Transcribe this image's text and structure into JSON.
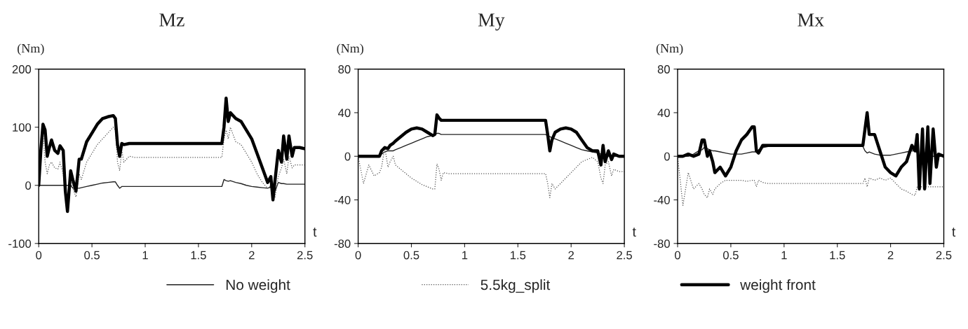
{
  "chart_data": [
    {
      "type": "line",
      "title": "Mz",
      "xlabel": "t",
      "ylabel": "(Nm)",
      "xlim": [
        0,
        2.5
      ],
      "xticks": [
        0,
        0.5,
        1,
        1.5,
        2,
        2.5
      ],
      "ylim": [
        -100,
        200
      ],
      "yticks": [
        -100,
        0,
        100,
        200
      ],
      "grid": false,
      "legend": false,
      "x": [
        0,
        0.02,
        0.04,
        0.06,
        0.08,
        0.1,
        0.12,
        0.15,
        0.18,
        0.2,
        0.23,
        0.25,
        0.27,
        0.3,
        0.32,
        0.35,
        0.38,
        0.4,
        0.45,
        0.5,
        0.55,
        0.6,
        0.65,
        0.7,
        0.72,
        0.74,
        0.76,
        0.78,
        0.8,
        0.85,
        0.9,
        1.0,
        1.5,
        1.72,
        1.74,
        1.76,
        1.78,
        1.8,
        1.85,
        1.9,
        1.95,
        2.0,
        2.05,
        2.1,
        2.15,
        2.18,
        2.2,
        2.22,
        2.25,
        2.28,
        2.3,
        2.33,
        2.35,
        2.38,
        2.4,
        2.45,
        2.5
      ],
      "series": [
        {
          "color": "#222222",
          "line_style": "solid",
          "values": [
            0,
            0,
            0,
            0,
            0,
            0,
            0,
            0,
            0,
            0,
            0,
            0,
            0,
            0,
            -5,
            -5,
            -5,
            -4,
            -2,
            0,
            2,
            4,
            5,
            6,
            6,
            0,
            -5,
            -2,
            -2,
            -2,
            -2,
            -2,
            -2,
            -2,
            10,
            8,
            7,
            8,
            5,
            3,
            0,
            -2,
            -3,
            -4,
            -5,
            -3,
            -8,
            -10,
            5,
            3,
            3,
            2,
            2,
            2,
            2,
            2,
            2
          ]
        },
        {
          "color": "#555555",
          "line_style": "dotted",
          "values": [
            0,
            45,
            90,
            40,
            20,
            35,
            40,
            30,
            28,
            40,
            20,
            -10,
            -30,
            15,
            -5,
            -20,
            20,
            10,
            40,
            55,
            70,
            80,
            90,
            100,
            95,
            40,
            25,
            60,
            40,
            50,
            48,
            48,
            48,
            48,
            80,
            95,
            80,
            100,
            75,
            70,
            55,
            40,
            20,
            5,
            -5,
            0,
            -15,
            -20,
            15,
            30,
            45,
            20,
            50,
            30,
            35,
            35,
            35
          ]
        },
        {
          "color": "#000000",
          "line_style": "solid",
          "values": [
            0,
            60,
            105,
            95,
            50,
            65,
            78,
            60,
            55,
            68,
            60,
            -10,
            -45,
            25,
            10,
            -10,
            45,
            45,
            75,
            90,
            105,
            115,
            118,
            120,
            115,
            70,
            50,
            72,
            70,
            72,
            72,
            72,
            72,
            72,
            100,
            150,
            110,
            125,
            115,
            110,
            95,
            80,
            55,
            30,
            5,
            15,
            -25,
            10,
            60,
            40,
            85,
            45,
            85,
            50,
            65,
            65,
            63
          ]
        }
      ]
    },
    {
      "type": "line",
      "title": "My",
      "xlabel": "t",
      "ylabel": "(Nm)",
      "xlim": [
        0,
        2.5
      ],
      "xticks": [
        0,
        0.5,
        1,
        1.5,
        2,
        2.5
      ],
      "ylim": [
        -80,
        80
      ],
      "yticks": [
        -80,
        -40,
        0,
        40,
        80
      ],
      "grid": false,
      "legend": "bottom",
      "x": [
        0,
        0.05,
        0.1,
        0.15,
        0.2,
        0.22,
        0.25,
        0.28,
        0.3,
        0.33,
        0.35,
        0.4,
        0.45,
        0.5,
        0.55,
        0.6,
        0.65,
        0.7,
        0.72,
        0.74,
        0.76,
        0.78,
        0.8,
        0.85,
        0.9,
        1.0,
        1.5,
        1.76,
        1.78,
        1.8,
        1.82,
        1.85,
        1.9,
        1.95,
        2.0,
        2.05,
        2.1,
        2.15,
        2.2,
        2.25,
        2.28,
        2.3,
        2.32,
        2.35,
        2.38,
        2.4,
        2.45,
        2.5
      ],
      "series": [
        {
          "name": "No weight",
          "color": "#222222",
          "line_style": "solid",
          "values": [
            0,
            0,
            0,
            0,
            0,
            2,
            4,
            5,
            5,
            5,
            6,
            8,
            10,
            12,
            14,
            16,
            18,
            19,
            20,
            21,
            21,
            20,
            20,
            20,
            20,
            20,
            20,
            20,
            19,
            18,
            17,
            16,
            14,
            12,
            10,
            8,
            6,
            5,
            4,
            3,
            2,
            1,
            0,
            0,
            0,
            0,
            0,
            0
          ]
        },
        {
          "name": "5.5kg_split",
          "color": "#555555",
          "line_style": "dotted",
          "values": [
            0,
            -25,
            -8,
            -18,
            -15,
            -10,
            8,
            -10,
            -5,
            0,
            -8,
            -12,
            -16,
            -20,
            -23,
            -26,
            -28,
            -30,
            -30,
            -7,
            -12,
            -22,
            -15,
            -16,
            -16,
            -16,
            -16,
            -16,
            -25,
            -38,
            -25,
            -30,
            -25,
            -20,
            -15,
            -10,
            -5,
            -3,
            -1,
            -5,
            -20,
            -25,
            -8,
            -5,
            -18,
            -12,
            -14,
            -14
          ]
        },
        {
          "name": "weight front",
          "color": "#000000",
          "line_style": "solid",
          "values": [
            0,
            0,
            0,
            0,
            0,
            5,
            8,
            7,
            10,
            12,
            14,
            18,
            22,
            25,
            26,
            25,
            22,
            19,
            20,
            38,
            35,
            33,
            33,
            33,
            33,
            33,
            33,
            33,
            20,
            5,
            15,
            22,
            25,
            26,
            25,
            22,
            15,
            8,
            5,
            5,
            -8,
            10,
            -5,
            5,
            -3,
            2,
            0,
            0
          ]
        }
      ]
    },
    {
      "type": "line",
      "title": "Mx",
      "xlabel": "t",
      "ylabel": "(Nm)",
      "xlim": [
        0,
        2.5
      ],
      "xticks": [
        0,
        0.5,
        1,
        1.5,
        2,
        2.5
      ],
      "ylim": [
        -80,
        80
      ],
      "yticks": [
        -80,
        -40,
        0,
        40,
        80
      ],
      "grid": false,
      "legend": false,
      "x": [
        0,
        0.05,
        0.1,
        0.15,
        0.2,
        0.23,
        0.25,
        0.28,
        0.3,
        0.33,
        0.35,
        0.4,
        0.45,
        0.5,
        0.55,
        0.6,
        0.65,
        0.7,
        0.72,
        0.74,
        0.76,
        0.8,
        0.85,
        0.9,
        1.0,
        1.5,
        1.74,
        1.76,
        1.78,
        1.8,
        1.85,
        1.9,
        1.95,
        2.0,
        2.05,
        2.1,
        2.15,
        2.2,
        2.23,
        2.25,
        2.27,
        2.3,
        2.32,
        2.35,
        2.37,
        2.4,
        2.43,
        2.45,
        2.5
      ],
      "series": [
        {
          "color": "#222222",
          "line_style": "solid",
          "values": [
            0,
            0,
            0,
            2,
            5,
            6,
            8,
            7,
            6,
            5,
            5,
            4,
            3,
            2,
            2,
            2,
            3,
            4,
            4,
            4,
            6,
            8,
            9,
            9,
            9,
            9,
            9,
            5,
            3,
            4,
            2,
            1,
            1,
            1,
            2,
            3,
            4,
            5,
            5,
            3,
            0,
            0,
            0,
            0,
            0,
            0,
            0,
            0,
            0
          ]
        },
        {
          "color": "#555555",
          "line_style": "dotted",
          "values": [
            0,
            -45,
            -15,
            -30,
            -25,
            -30,
            -35,
            -38,
            -30,
            -35,
            -30,
            -25,
            -22,
            -22,
            -22,
            -22,
            -23,
            -22,
            -22,
            -28,
            -22,
            -24,
            -25,
            -25,
            -25,
            -25,
            -25,
            -20,
            -28,
            -20,
            -22,
            -20,
            -22,
            -20,
            -25,
            -30,
            -32,
            -35,
            -36,
            -28,
            -28,
            -28,
            -28,
            -28,
            -28,
            -28,
            -28,
            -28,
            -28
          ]
        },
        {
          "color": "#000000",
          "line_style": "solid",
          "values": [
            0,
            0,
            2,
            0,
            2,
            15,
            15,
            0,
            5,
            -5,
            -15,
            -10,
            -18,
            -10,
            5,
            15,
            20,
            27,
            27,
            5,
            3,
            10,
            10,
            10,
            10,
            10,
            10,
            25,
            40,
            20,
            20,
            5,
            -10,
            -15,
            -18,
            -10,
            -5,
            10,
            5,
            20,
            -30,
            25,
            -30,
            27,
            -25,
            25,
            -10,
            2,
            0
          ]
        }
      ]
    }
  ]
}
